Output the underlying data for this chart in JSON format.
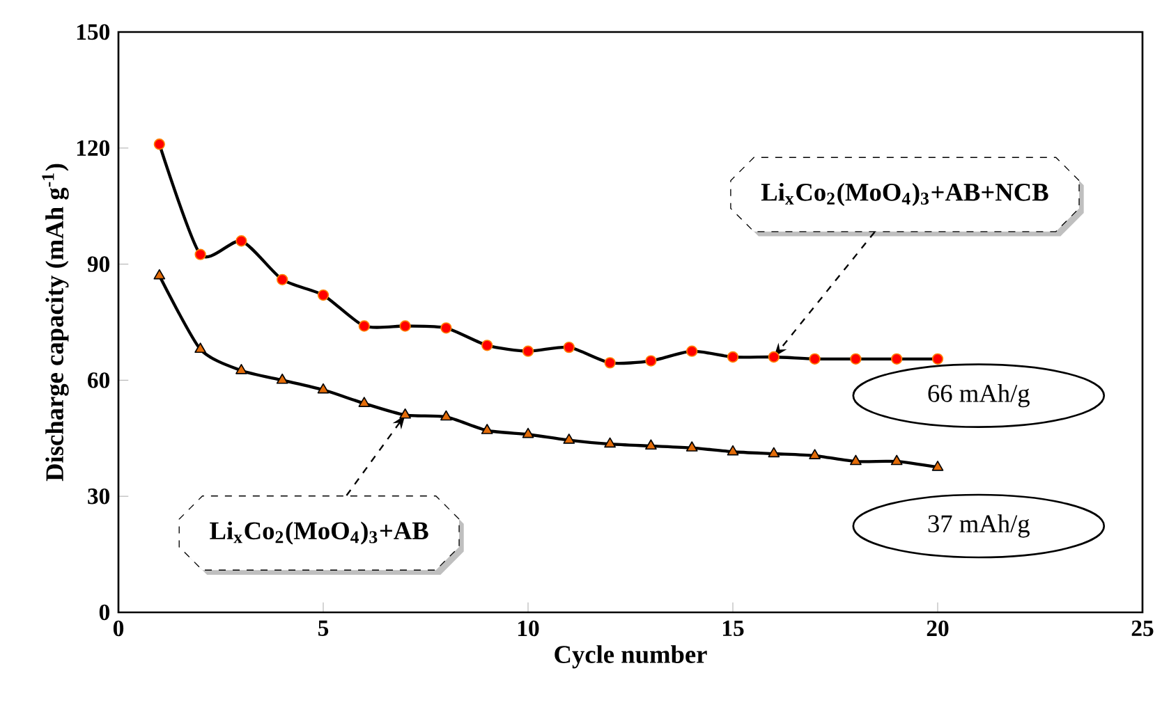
{
  "chart_data": {
    "type": "line",
    "xlabel": "Cycle number",
    "ylabel": "Discharge capacity (mAh g$^{-1}$)",
    "x": [
      1,
      2,
      3,
      4,
      5,
      6,
      7,
      8,
      9,
      10,
      11,
      12,
      13,
      14,
      15,
      16,
      17,
      18,
      19,
      20
    ],
    "series": [
      {
        "name": "Li$_{x}$Co$_{2}$(MoO$_{4}$)$_{3}$+AB+NCB",
        "color": "#ff0000",
        "marker": "circle",
        "values": [
          121,
          92.5,
          96,
          86,
          82,
          74,
          74,
          73.5,
          69,
          67.5,
          68.5,
          64.5,
          65,
          67.5,
          66,
          66,
          65.5,
          65.5,
          65.5,
          65.5
        ]
      },
      {
        "name": "Li$_{x}$Co$_{2}$(MoO$_{4}$)$_{3}$+AB",
        "color": "#e36c09",
        "marker": "triangle",
        "values": [
          87,
          68,
          62.5,
          60,
          57.5,
          54,
          51,
          50.5,
          47,
          46,
          44.5,
          43.5,
          43,
          42.5,
          41.5,
          41,
          40.5,
          39,
          39,
          37.5
        ]
      }
    ],
    "annotations": [
      "66 mAh/g",
      "37 mAh/g"
    ],
    "xlim": [
      0,
      25
    ],
    "ylim": [
      0,
      150
    ],
    "xticks": [
      0,
      5,
      10,
      15,
      20,
      25
    ],
    "yticks": [
      0,
      30,
      60,
      90,
      120,
      150
    ],
    "grid": false,
    "legend": false,
    "line_style": "solid"
  }
}
